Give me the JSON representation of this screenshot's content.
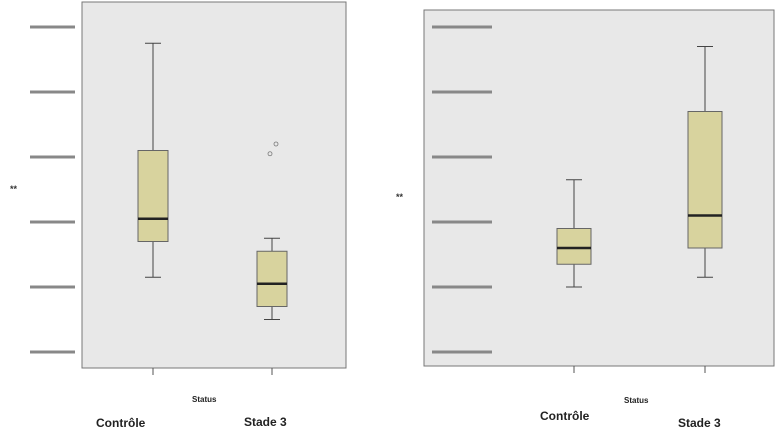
{
  "chart_data": [
    {
      "type": "boxplot",
      "xlabel": "Status",
      "ylabel": "**",
      "categories": [
        "Contrôle",
        "Stade 3"
      ],
      "ylim": [
        -0.5,
        5.5
      ],
      "yticks": [
        0,
        1,
        2,
        3,
        4,
        5
      ],
      "boxes": [
        {
          "min": 1.15,
          "q1": 1.7,
          "median": 2.05,
          "q3": 3.1,
          "max": 4.75,
          "outliers": []
        },
        {
          "min": 0.5,
          "q1": 0.7,
          "median": 1.05,
          "q3": 1.55,
          "max": 1.75,
          "outliers": [
            3.05,
            3.2
          ]
        }
      ]
    },
    {
      "type": "boxplot",
      "xlabel": "Status",
      "ylabel": "**",
      "categories": [
        "Contrôle",
        "Stade 3"
      ],
      "ylim": [
        -0.5,
        5.5
      ],
      "yticks": [
        0,
        1,
        2,
        3,
        4,
        5
      ],
      "boxes": [
        {
          "min": 1.0,
          "q1": 1.35,
          "median": 1.6,
          "q3": 1.9,
          "max": 2.65,
          "outliers": []
        },
        {
          "min": 1.15,
          "q1": 1.6,
          "median": 2.1,
          "q3": 3.7,
          "max": 4.7,
          "outliers": []
        }
      ]
    }
  ]
}
